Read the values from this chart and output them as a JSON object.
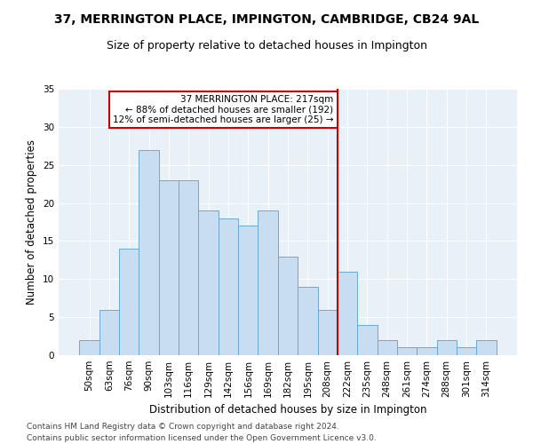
{
  "title": "37, MERRINGTON PLACE, IMPINGTON, CAMBRIDGE, CB24 9AL",
  "subtitle": "Size of property relative to detached houses in Impington",
  "xlabel": "Distribution of detached houses by size in Impington",
  "ylabel": "Number of detached properties",
  "bar_color": "#c8ddf0",
  "bar_edge_color": "#6aaad4",
  "background_color": "#e8f0f8",
  "grid_color": "white",
  "categories": [
    "50sqm",
    "63sqm",
    "76sqm",
    "90sqm",
    "103sqm",
    "116sqm",
    "129sqm",
    "142sqm",
    "156sqm",
    "169sqm",
    "182sqm",
    "195sqm",
    "208sqm",
    "222sqm",
    "235sqm",
    "248sqm",
    "261sqm",
    "274sqm",
    "288sqm",
    "301sqm",
    "314sqm"
  ],
  "values": [
    2,
    6,
    14,
    27,
    23,
    23,
    19,
    18,
    17,
    19,
    13,
    9,
    6,
    11,
    4,
    2,
    1,
    1,
    2,
    1,
    2
  ],
  "ylim": [
    0,
    35
  ],
  "yticks": [
    0,
    5,
    10,
    15,
    20,
    25,
    30,
    35
  ],
  "vline_color": "#cc0000",
  "annotation_text": "37 MERRINGTON PLACE: 217sqm\n← 88% of detached houses are smaller (192)\n12% of semi-detached houses are larger (25) →",
  "annotation_box_color": "white",
  "annotation_edge_color": "#cc0000",
  "footer1": "Contains HM Land Registry data © Crown copyright and database right 2024.",
  "footer2": "Contains public sector information licensed under the Open Government Licence v3.0."
}
